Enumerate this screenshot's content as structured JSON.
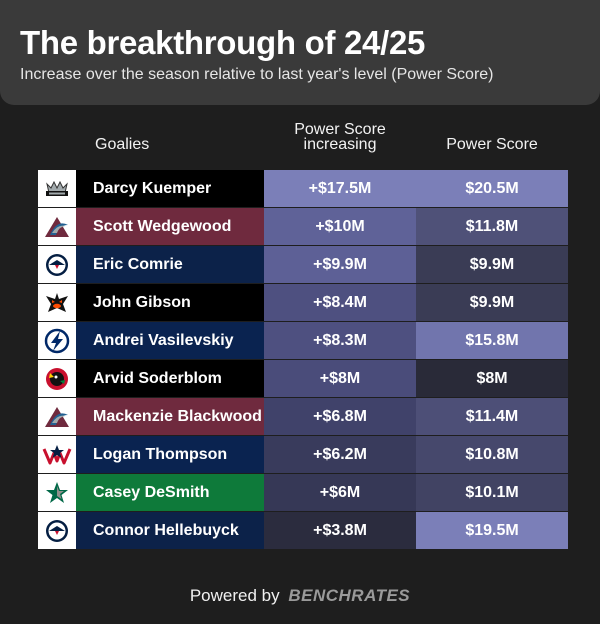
{
  "title": "The breakthrough of 24/25",
  "subtitle": "Increase over the season relative to last year's level (Power Score)",
  "columns": {
    "goalies": "Goalies",
    "increase_line1": "Power Score",
    "increase_line2": "increasing",
    "power_score": "Power Score"
  },
  "rows": [
    {
      "name": "Darcy Kuemper",
      "increase": "+$17.5M",
      "power_score": "$20.5M",
      "name_bg": "#000000",
      "inc_bg": "#7b7fb8",
      "ps_bg": "#7b7fb8",
      "logo": "kings-icon"
    },
    {
      "name": "Scott Wedgewood",
      "increase": "+$10M",
      "power_score": "$11.8M",
      "name_bg": "#6f2a3e",
      "inc_bg": "#5f6298",
      "ps_bg": "#4f5178",
      "logo": "avalanche-icon"
    },
    {
      "name": "Eric Comrie",
      "increase": "+$9.9M",
      "power_score": "$9.9M",
      "name_bg": "#0c2249",
      "inc_bg": "#5d6096",
      "ps_bg": "#3a3c55",
      "logo": "jets-icon"
    },
    {
      "name": "John Gibson",
      "increase": "+$8.4M",
      "power_score": "$9.9M",
      "name_bg": "#000000",
      "inc_bg": "#4e5080",
      "ps_bg": "#3a3c55",
      "logo": "ducks-icon"
    },
    {
      "name": "Andrei Vasilevskiy",
      "increase": "+$8.3M",
      "power_score": "$15.8M",
      "name_bg": "#0a2350",
      "inc_bg": "#4e5080",
      "ps_bg": "#7175ad",
      "logo": "lightning-icon"
    },
    {
      "name": "Arvid Soderblom",
      "increase": "+$8M",
      "power_score": "$8M",
      "name_bg": "#000000",
      "inc_bg": "#4a4c7a",
      "ps_bg": "#292a38",
      "logo": "blackhawks-icon"
    },
    {
      "name": "Mackenzie Blackwood",
      "increase": "+$6.8M",
      "power_score": "$11.4M",
      "name_bg": "#6f2a3e",
      "inc_bg": "#40426a",
      "ps_bg": "#4d4f77",
      "logo": "avalanche-icon"
    },
    {
      "name": "Logan Thompson",
      "increase": "+$6.2M",
      "power_score": "$10.8M",
      "name_bg": "#0a2350",
      "inc_bg": "#393b5c",
      "ps_bg": "#46486c",
      "logo": "capitals-icon"
    },
    {
      "name": "Casey DeSmith",
      "increase": "+$6M",
      "power_score": "$10.1M",
      "name_bg": "#0e7a3a",
      "inc_bg": "#363856",
      "ps_bg": "#414363",
      "logo": "stars-icon"
    },
    {
      "name": "Connor Hellebuyck",
      "increase": "+$3.8M",
      "power_score": "$19.5M",
      "name_bg": "#0c2249",
      "inc_bg": "#2b2c3e",
      "ps_bg": "#7b7fb8",
      "logo": "jets-icon"
    }
  ],
  "footer": {
    "prefix": "Powered by",
    "brand": "BENCHRATES"
  }
}
